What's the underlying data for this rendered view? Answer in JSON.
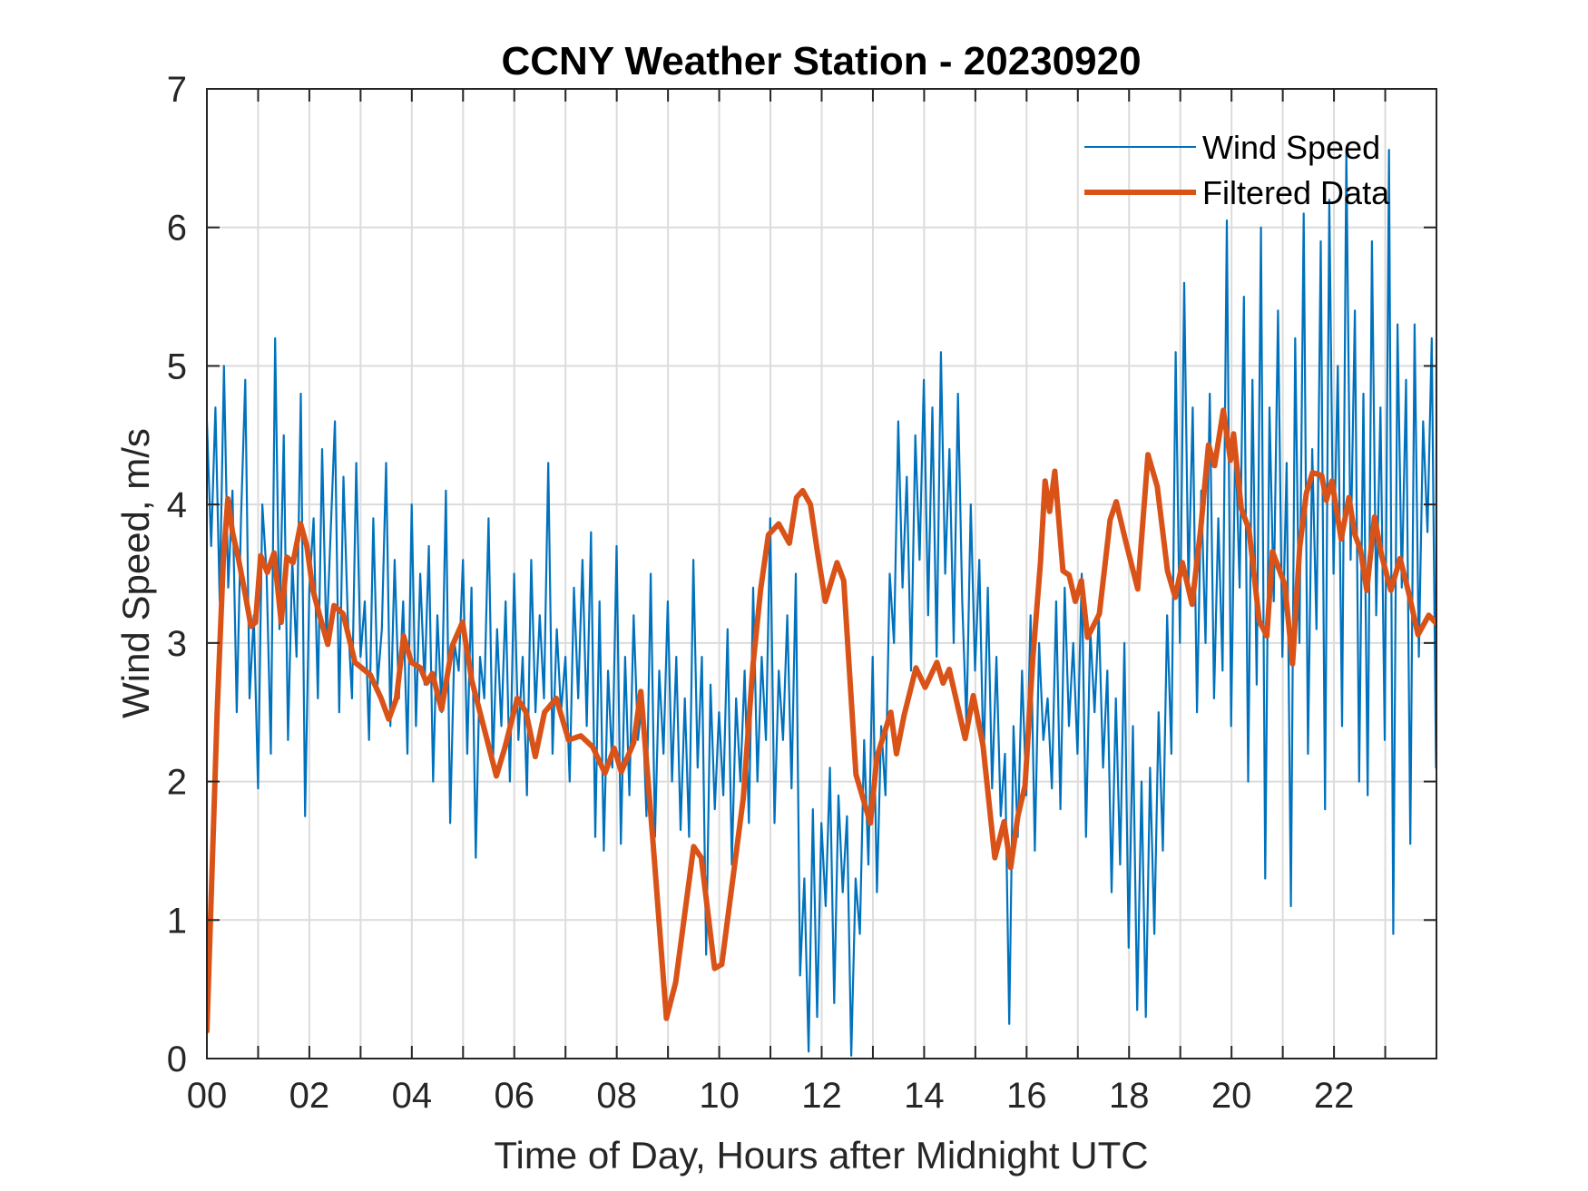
{
  "chart_data": {
    "type": "line",
    "title": "CCNY Weather Station - 20230920",
    "xlabel": "Time of Day, Hours after Midnight UTC",
    "ylabel": "Wind Speed, m/s",
    "xlim": [
      0,
      24
    ],
    "ylim": [
      0,
      7
    ],
    "xticks": [
      0,
      2,
      4,
      6,
      8,
      10,
      12,
      14,
      16,
      18,
      20,
      22
    ],
    "xtick_labels": [
      "00",
      "02",
      "04",
      "06",
      "08",
      "10",
      "12",
      "14",
      "16",
      "18",
      "20",
      "22"
    ],
    "xminor_step": 1,
    "yticks": [
      0,
      1,
      2,
      3,
      4,
      5,
      6,
      7
    ],
    "ytick_labels": [
      "0",
      "1",
      "2",
      "3",
      "4",
      "5",
      "6",
      "7"
    ],
    "grid": true,
    "legend": {
      "placement": "top-right",
      "entries": [
        "Wind Speed",
        "Filtered Data"
      ]
    },
    "colors": {
      "wind_speed": "#0072BD",
      "filtered": "#D95319",
      "axes": "#262626",
      "grid": "#dcdcdc"
    },
    "series": [
      {
        "name": "Wind Speed",
        "x_start": 0,
        "x_step": 0.0833,
        "values": [
          4.6,
          3.7,
          4.7,
          3.3,
          5.0,
          3.4,
          4.1,
          2.5,
          3.9,
          4.9,
          2.6,
          3.2,
          1.95,
          4.0,
          3.5,
          2.2,
          5.2,
          3.1,
          4.5,
          2.3,
          3.6,
          2.9,
          4.8,
          1.75,
          3.4,
          3.9,
          2.6,
          4.4,
          3.0,
          3.8,
          4.6,
          2.5,
          4.2,
          3.2,
          2.6,
          4.3,
          2.9,
          3.3,
          2.3,
          3.9,
          2.7,
          3.1,
          4.3,
          2.4,
          3.6,
          2.6,
          3.3,
          2.2,
          4.0,
          2.4,
          3.5,
          2.7,
          3.7,
          2.0,
          3.2,
          2.5,
          4.1,
          1.7,
          3.0,
          2.8,
          3.6,
          2.2,
          3.4,
          1.45,
          2.9,
          2.6,
          3.9,
          2.1,
          3.1,
          2.4,
          3.3,
          2.0,
          3.5,
          2.3,
          2.9,
          1.9,
          3.6,
          2.5,
          3.2,
          2.6,
          4.3,
          2.2,
          3.1,
          2.5,
          2.9,
          2.0,
          3.4,
          2.6,
          3.6,
          2.4,
          3.8,
          1.6,
          3.3,
          1.5,
          2.8,
          2.1,
          3.7,
          1.55,
          2.9,
          1.9,
          3.2,
          2.3,
          2.6,
          1.75,
          3.5,
          1.6,
          2.8,
          2.2,
          3.3,
          2.0,
          2.9,
          1.65,
          2.6,
          1.6,
          3.6,
          2.1,
          2.9,
          0.75,
          2.7,
          1.8,
          2.5,
          1.9,
          3.1,
          1.4,
          2.6,
          2.0,
          2.8,
          1.7,
          3.4,
          2.0,
          2.9,
          2.3,
          3.9,
          1.7,
          2.8,
          2.3,
          3.2,
          1.95,
          3.5,
          0.6,
          1.3,
          0.05,
          1.8,
          0.3,
          1.7,
          1.1,
          2.1,
          0.4,
          1.9,
          1.2,
          1.75,
          0.02,
          1.3,
          0.9,
          2.3,
          1.4,
          2.9,
          1.2,
          2.4,
          1.9,
          3.5,
          3.0,
          4.6,
          3.4,
          4.2,
          2.8,
          4.5,
          3.6,
          4.9,
          3.2,
          4.7,
          2.9,
          5.1,
          3.5,
          4.4,
          3.0,
          4.8,
          3.3,
          2.4,
          4.0,
          2.8,
          3.6,
          2.1,
          3.4,
          1.95,
          2.9,
          1.75,
          2.2,
          0.25,
          2.4,
          1.6,
          2.8,
          1.9,
          3.2,
          1.5,
          3.0,
          2.3,
          2.6,
          1.95,
          3.3,
          1.8,
          3.4,
          2.4,
          3.0,
          2.2,
          3.5,
          1.6,
          3.1,
          2.5,
          3.2,
          2.1,
          2.8,
          1.2,
          2.6,
          1.4,
          3.0,
          0.8,
          2.4,
          0.35,
          2.0,
          0.3,
          2.1,
          0.9,
          2.5,
          1.5,
          3.2,
          2.2,
          5.1,
          3.0,
          5.6,
          3.4,
          4.7,
          2.5,
          4.1,
          3.0,
          4.8,
          2.6,
          3.9,
          2.8,
          6.05,
          2.4,
          4.5,
          3.4,
          5.5,
          2.0,
          4.9,
          2.7,
          6.0,
          1.3,
          4.7,
          3.3,
          5.4,
          2.9,
          4.3,
          1.1,
          5.2,
          3.0,
          6.1,
          2.2,
          4.4,
          3.1,
          5.9,
          1.8,
          6.2,
          3.5,
          5.0,
          2.4,
          6.55,
          3.6,
          5.4,
          2.0,
          4.8,
          1.9,
          5.9,
          3.2,
          4.7,
          2.3,
          6.56,
          0.9,
          5.3,
          3.4,
          4.9,
          1.55,
          5.3,
          2.9,
          4.6,
          3.8,
          5.2,
          2.1,
          4.6,
          2.9,
          5.0,
          2.4,
          3.9,
          2.6,
          3.7,
          2.3,
          3.6
        ]
      },
      {
        "name": "Filtered Data",
        "x": [
          0,
          0.2,
          0.32,
          0.41,
          0.5,
          0.62,
          0.75,
          0.86,
          0.95,
          1.05,
          1.18,
          1.31,
          1.45,
          1.56,
          1.68,
          1.83,
          1.95,
          2.07,
          2.2,
          2.36,
          2.48,
          2.66,
          2.89,
          3.19,
          3.4,
          3.55,
          3.7,
          3.84,
          3.99,
          4.17,
          4.29,
          4.4,
          4.58,
          4.79,
          4.99,
          5.17,
          5.47,
          5.65,
          5.82,
          6.06,
          6.23,
          6.41,
          6.59,
          6.82,
          7.06,
          7.3,
          7.53,
          7.77,
          7.95,
          8.09,
          8.33,
          8.47,
          8.7,
          8.97,
          9.15,
          9.5,
          9.65,
          9.91,
          10.05,
          10.47,
          10.66,
          10.81,
          10.96,
          11.16,
          11.37,
          11.51,
          11.63,
          11.78,
          11.92,
          12.07,
          12.3,
          12.43,
          12.67,
          12.95,
          13.08,
          13.35,
          13.46,
          13.61,
          13.84,
          14.02,
          14.25,
          14.37,
          14.49,
          14.8,
          14.96,
          15.15,
          15.38,
          15.56,
          15.69,
          15.83,
          15.97,
          16.12,
          16.27,
          16.36,
          16.45,
          16.55,
          16.71,
          16.83,
          16.95,
          17.07,
          17.19,
          17.42,
          17.63,
          17.75,
          17.93,
          18.17,
          18.37,
          18.55,
          18.75,
          18.9,
          19.04,
          19.23,
          19.4,
          19.55,
          19.67,
          19.84,
          19.98,
          20.04,
          20.19,
          20.34,
          20.54,
          20.69,
          20.8,
          21.04,
          21.19,
          21.33,
          21.46,
          21.58,
          21.76,
          21.85,
          21.96,
          22.14,
          22.29,
          22.41,
          22.52,
          22.64,
          22.79,
          22.93,
          23.11,
          23.29,
          23.46,
          23.64,
          23.85,
          24.0
        ],
        "values": [
          0.2,
          2.5,
          3.6,
          4.04,
          3.8,
          3.6,
          3.35,
          3.12,
          3.15,
          3.63,
          3.51,
          3.65,
          3.15,
          3.62,
          3.58,
          3.86,
          3.7,
          3.38,
          3.2,
          2.99,
          3.27,
          3.21,
          2.86,
          2.77,
          2.6,
          2.45,
          2.6,
          3.05,
          2.86,
          2.82,
          2.71,
          2.78,
          2.52,
          2.98,
          3.15,
          2.73,
          2.3,
          2.04,
          2.25,
          2.6,
          2.5,
          2.18,
          2.5,
          2.6,
          2.3,
          2.33,
          2.25,
          2.06,
          2.24,
          2.07,
          2.28,
          2.65,
          1.6,
          0.29,
          0.55,
          1.53,
          1.45,
          0.65,
          0.68,
          1.88,
          2.84,
          3.39,
          3.78,
          3.86,
          3.72,
          4.05,
          4.1,
          4.0,
          3.65,
          3.3,
          3.58,
          3.45,
          2.05,
          1.7,
          2.18,
          2.5,
          2.2,
          2.48,
          2.82,
          2.68,
          2.86,
          2.71,
          2.81,
          2.31,
          2.62,
          2.26,
          1.45,
          1.71,
          1.38,
          1.75,
          1.97,
          2.88,
          3.58,
          4.17,
          3.95,
          4.24,
          3.52,
          3.49,
          3.3,
          3.45,
          3.04,
          3.21,
          3.89,
          4.02,
          3.74,
          3.39,
          4.36,
          4.13,
          3.52,
          3.33,
          3.58,
          3.28,
          3.83,
          4.43,
          4.28,
          4.68,
          4.32,
          4.51,
          3.97,
          3.82,
          3.16,
          3.05,
          3.66,
          3.42,
          2.85,
          3.69,
          4.08,
          4.23,
          4.21,
          4.03,
          4.17,
          3.75,
          4.05,
          3.78,
          3.67,
          3.38,
          3.91,
          3.63,
          3.38,
          3.61,
          3.36,
          3.06,
          3.2,
          3.14
        ]
      }
    ]
  }
}
